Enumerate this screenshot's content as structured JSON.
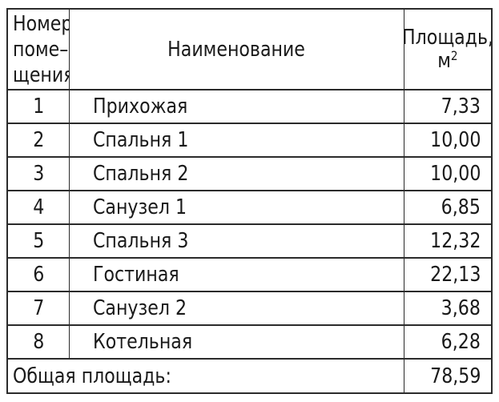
{
  "table": {
    "header": {
      "col1_line1": "Номер",
      "col1_line2": "поме–",
      "col1_line3": "щения",
      "col2": "Наименование",
      "col3_line1": "Площадь,",
      "col3_unit_base": "м",
      "col3_unit_sup": "2"
    },
    "rows": [
      {
        "num": "1",
        "name": "Прихожая",
        "area": "7,33"
      },
      {
        "num": "2",
        "name": "Спальня 1",
        "area": "10,00"
      },
      {
        "num": "3",
        "name": "Спальня 2",
        "area": "10,00"
      },
      {
        "num": "4",
        "name": "Санузел 1",
        "area": "6,85"
      },
      {
        "num": "5",
        "name": "Спальня 3",
        "area": "12,32"
      },
      {
        "num": "6",
        "name": "Гостиная",
        "area": "22,13"
      },
      {
        "num": "7",
        "name": "Санузел 2",
        "area": "3,68"
      },
      {
        "num": "8",
        "name": "Котельная",
        "area": "6,28"
      }
    ],
    "footer": {
      "label": "Общая площадь:",
      "value": "78,59"
    }
  },
  "colors": {
    "text": "#1a1a1a",
    "border": "#2b2b2b",
    "background": "#ffffff"
  }
}
